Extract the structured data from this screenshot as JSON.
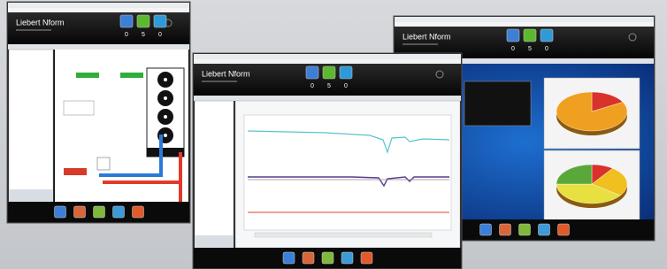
{
  "windows": [
    {
      "title": "Liebert Nform",
      "status_counts": [
        "0",
        "5",
        "0"
      ]
    },
    {
      "title": "Liebert Nform",
      "status_counts": [
        "0",
        "5",
        "0"
      ]
    },
    {
      "title": "Liebert Nform",
      "status_counts": [
        "0",
        "5",
        "0"
      ]
    }
  ]
}
